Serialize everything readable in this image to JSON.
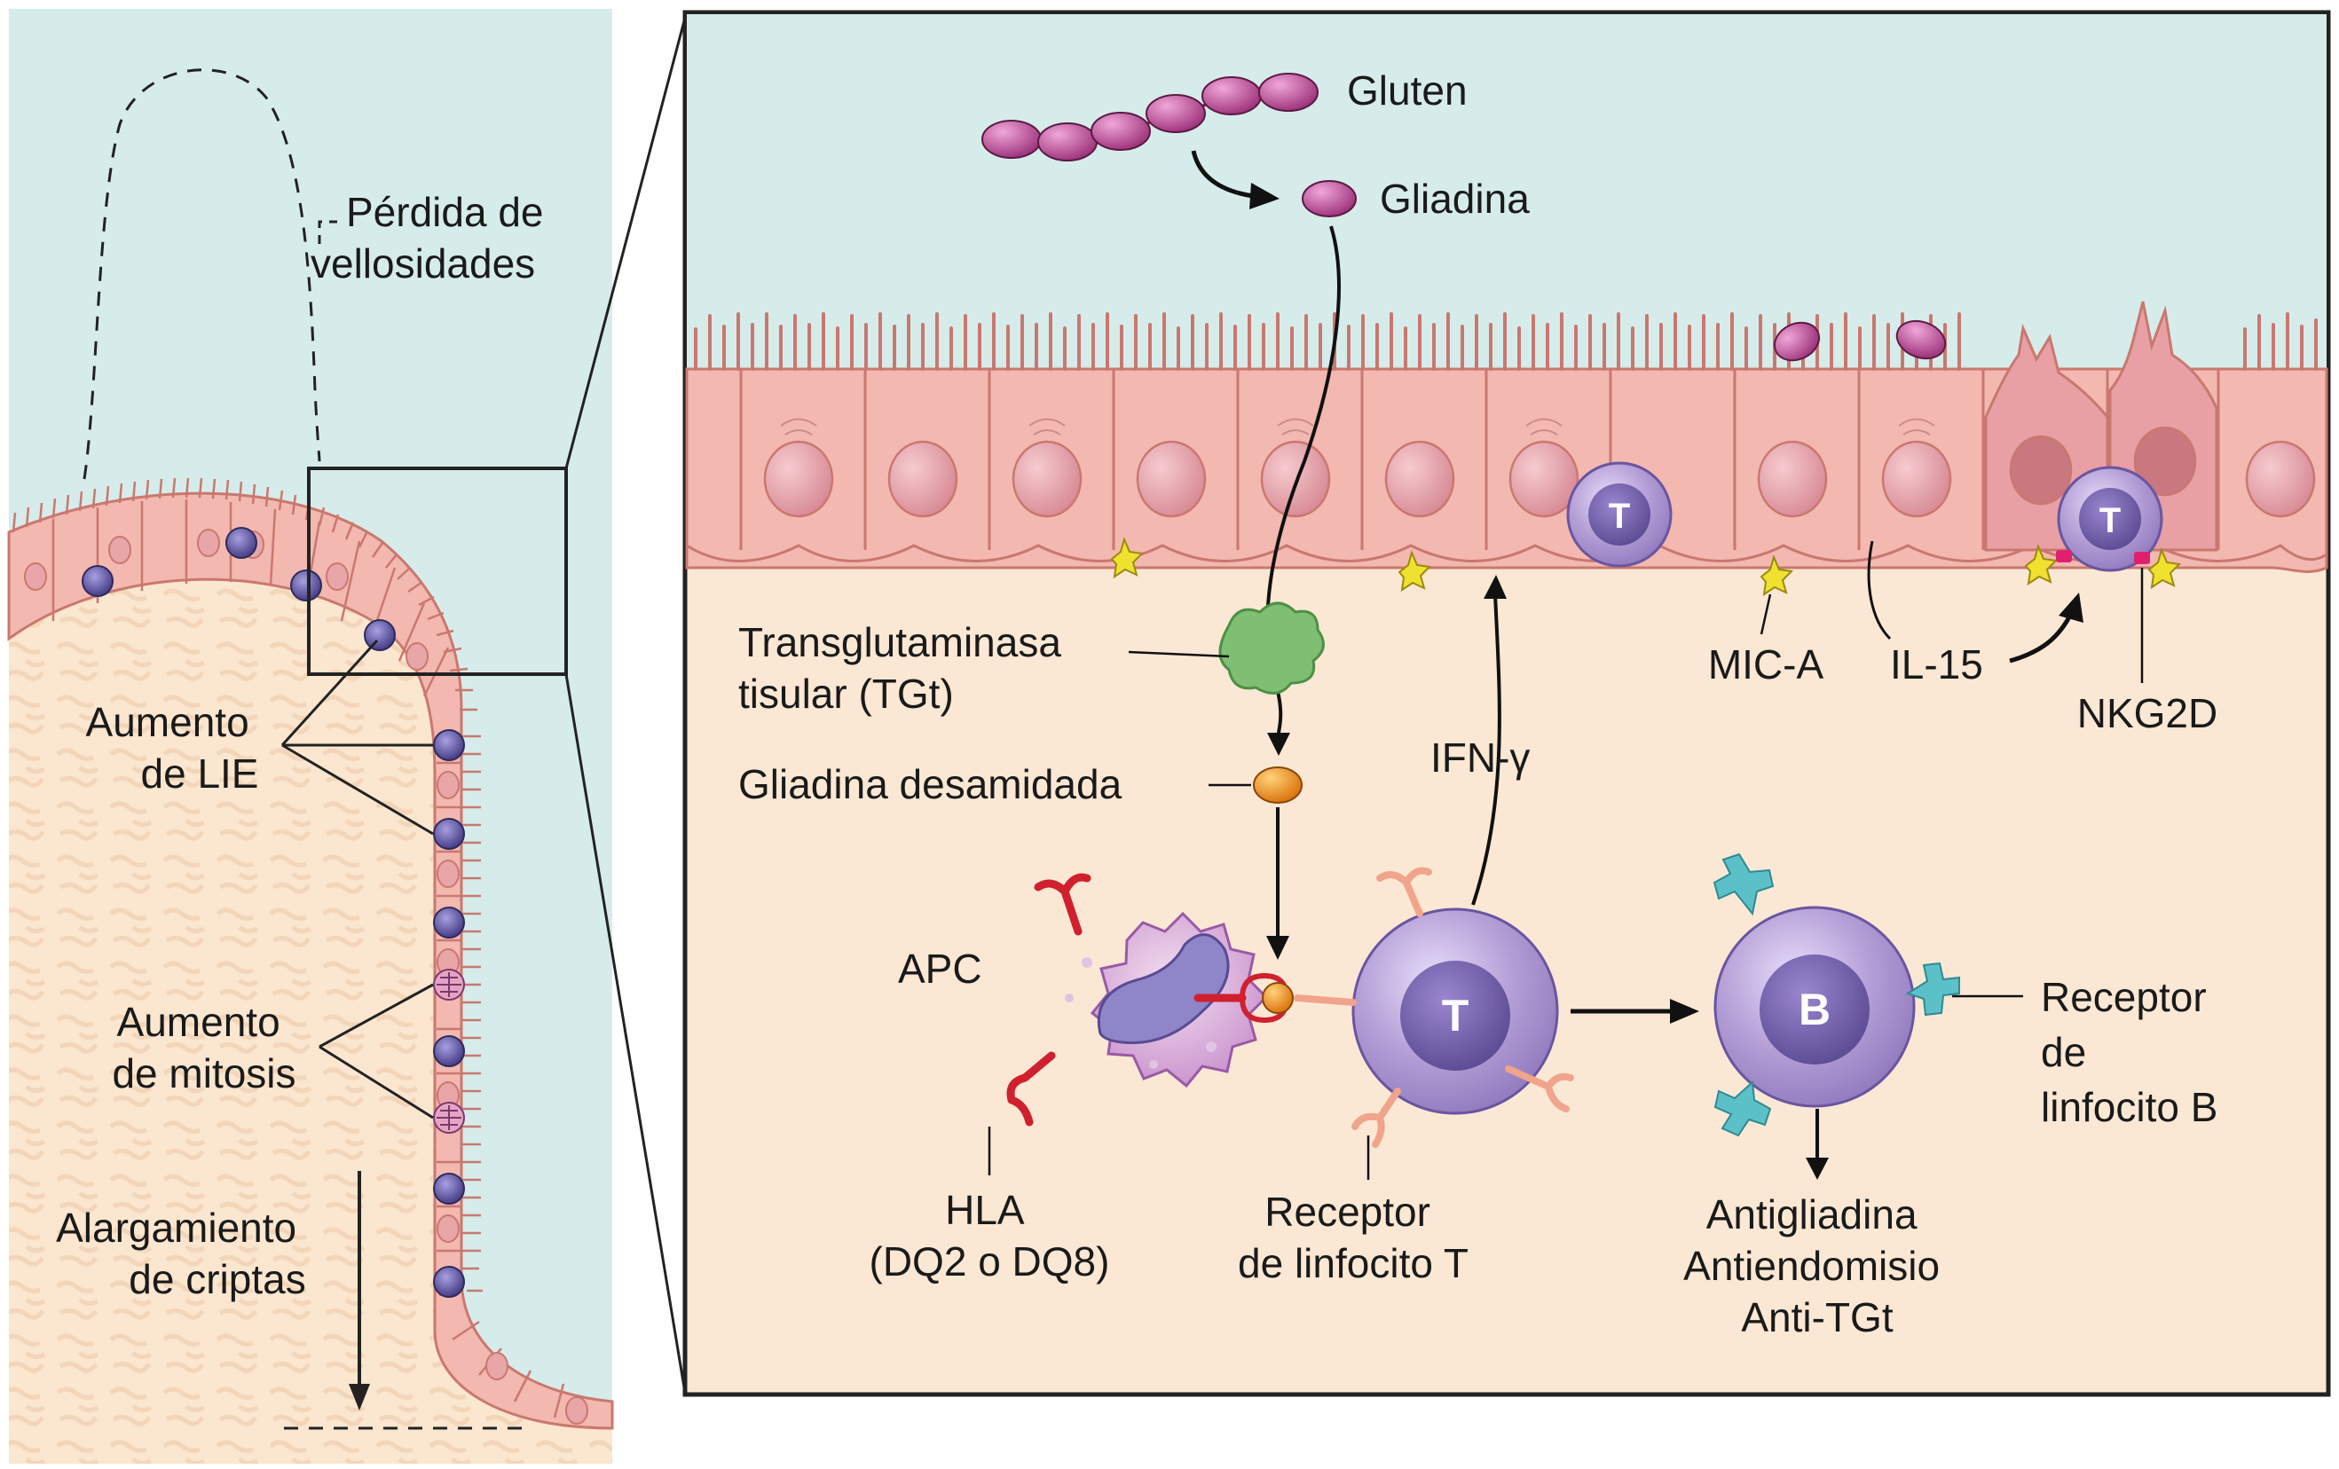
{
  "colors": {
    "lumen": "#d6ecea",
    "lamina": "#fbe8d4",
    "cell_fill": "#f3b8b0",
    "cell_stroke": "#c9786f",
    "nucleus": "#e9a6a9",
    "lymphocyte": "#a88ecb",
    "lymph_core": "#6a5aa0",
    "gluten_bead": "#b0408a",
    "tgt": "#7fbf73",
    "deamidated": "#e48a1a",
    "hla": "#d0202e",
    "tcr": "#f0a48c",
    "bcr": "#5cc0c8",
    "mica": "#f0e030",
    "nkg2d": "#e0206e"
  },
  "left_panel": {
    "villus_loss": "Pérdida de\nvellosidades",
    "iel_increase": "Aumento\nde LIE",
    "mitosis_increase": "Aumento\nde mitosis",
    "crypt_elongation": "Alargamiento\nde criptas"
  },
  "right_panel": {
    "gluten": "Gluten",
    "gliadin": "Gliadina",
    "tissue_transglutaminase": "Transglutaminasa\ntisular (TGt)",
    "deamidated_gliadin": "Gliadina desamidada",
    "apc": "APC",
    "hla": "HLA\n(DQ2 o DQ8)",
    "t_receptor": "Receptor\nde linfocito T",
    "ifn": "IFN-γ",
    "mic_a": "MIC-A",
    "il15": "IL-15",
    "nkg2d": "NKG2D",
    "b_receptor": "Receptor\nde\nlinfocito B",
    "antibodies": "Antigliadina\nAntiendomisio\nAnti-TGt",
    "t_cell_letter": "T",
    "b_cell_letter": "B"
  }
}
